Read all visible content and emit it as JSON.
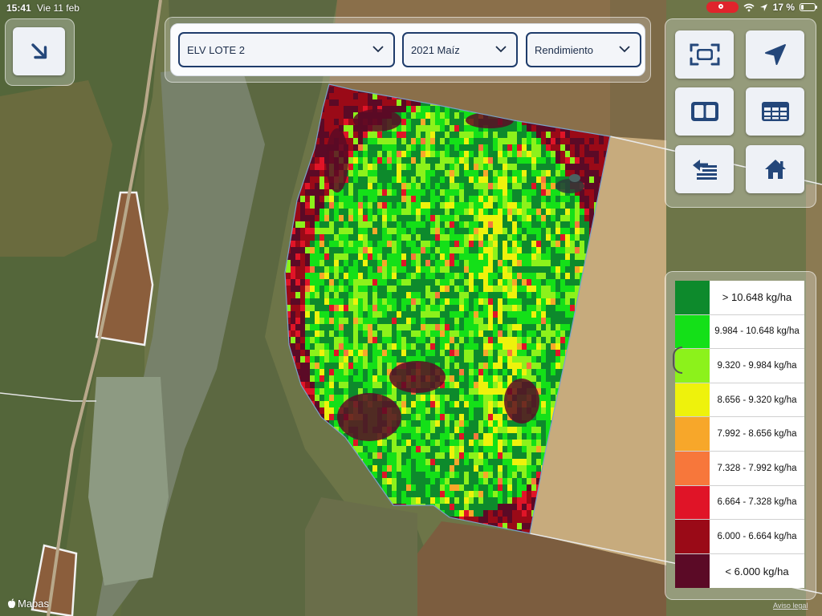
{
  "status_bar": {
    "time": "15:41",
    "date": "Vie 11 feb",
    "battery": "17 %"
  },
  "selectors": {
    "field": {
      "value": "ELV LOTE 2"
    },
    "season": {
      "value": "2021 Maíz"
    },
    "layer": {
      "value": "Rendimiento"
    }
  },
  "toolbar": {
    "collapse": {
      "icon": "arrow-down-right-icon"
    },
    "buttons": [
      {
        "name": "fit-bounds",
        "icon": "frame-icon"
      },
      {
        "name": "locate",
        "icon": "location-arrow-icon"
      },
      {
        "name": "split-view",
        "icon": "split-view-icon"
      },
      {
        "name": "table",
        "icon": "table-icon"
      },
      {
        "name": "list",
        "icon": "list-back-icon"
      },
      {
        "name": "home",
        "icon": "home-icon"
      }
    ]
  },
  "legend": {
    "items": [
      {
        "label": "> 10.648 kg/ha",
        "color": "#0d8a2c"
      },
      {
        "label": "9.984 - 10.648 kg/ha",
        "color": "#14e018"
      },
      {
        "label": "9.320 - 9.984 kg/ha",
        "color": "#8cf21b"
      },
      {
        "label": "8.656 - 9.320 kg/ha",
        "color": "#eef20c"
      },
      {
        "label": "7.992 - 8.656 kg/ha",
        "color": "#f7a72a"
      },
      {
        "label": "7.328 - 7.992 kg/ha",
        "color": "#f7773b"
      },
      {
        "label": "6.664 - 7.328 kg/ha",
        "color": "#e01427"
      },
      {
        "label": "6.000 - 6.664 kg/ha",
        "color": "#9a0a17"
      },
      {
        "label": "< 6.000 kg/ha",
        "color": "#5b0a26"
      }
    ]
  },
  "map": {
    "attribution": "Mapas",
    "legal": "Aviso legal"
  }
}
